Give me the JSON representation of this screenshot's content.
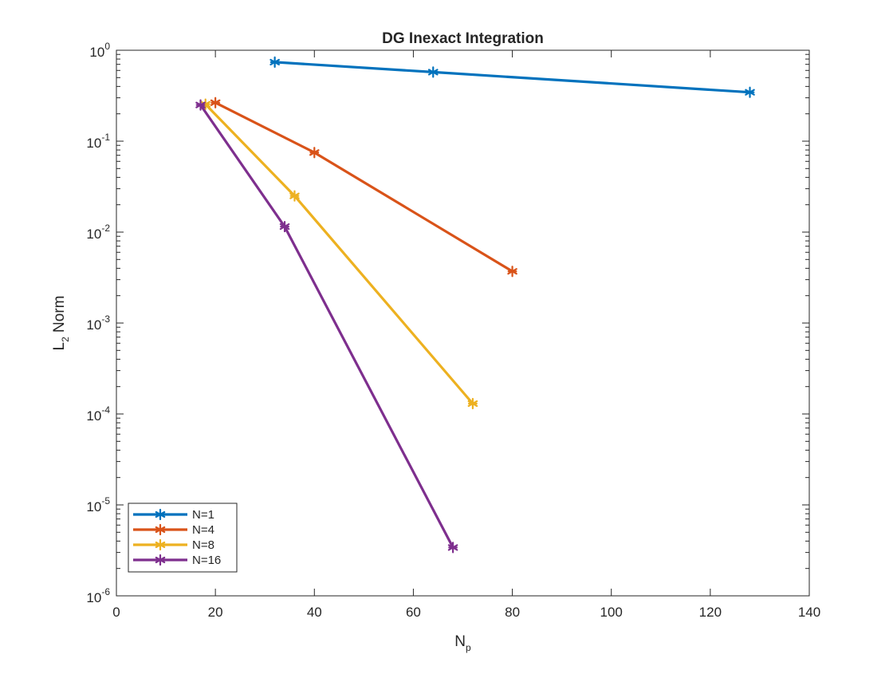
{
  "chart_data": {
    "type": "line",
    "title": "DG Inexact Integration",
    "xlabel": {
      "main": "N",
      "sub": "p"
    },
    "ylabel": {
      "main": "L",
      "sub": "2",
      "rest": " Norm"
    },
    "yscale": "log",
    "xlim": [
      0,
      140
    ],
    "ylim": [
      1e-06,
      1
    ],
    "xticks": [
      {
        "value": 0,
        "label": "0"
      },
      {
        "value": 20,
        "label": "20"
      },
      {
        "value": 40,
        "label": "40"
      },
      {
        "value": 60,
        "label": "60"
      },
      {
        "value": 80,
        "label": "80"
      },
      {
        "value": 100,
        "label": "100"
      },
      {
        "value": 120,
        "label": "120"
      },
      {
        "value": 140,
        "label": "140"
      }
    ],
    "yticks": [
      {
        "value": 1,
        "base": "10",
        "exp": "0"
      },
      {
        "value": 0.1,
        "base": "10",
        "exp": "-1"
      },
      {
        "value": 0.01,
        "base": "10",
        "exp": "-2"
      },
      {
        "value": 0.001,
        "base": "10",
        "exp": "-3"
      },
      {
        "value": 0.0001,
        "base": "10",
        "exp": "-4"
      },
      {
        "value": 1e-05,
        "base": "10",
        "exp": "-5"
      },
      {
        "value": 1e-06,
        "base": "10",
        "exp": "-6"
      }
    ],
    "grid": false,
    "legend_position": "bottom-left",
    "marker": "asterisk",
    "series": [
      {
        "name": "N=1",
        "color": "#0072BD",
        "x": [
          32,
          64,
          128
        ],
        "y": [
          0.74,
          0.575,
          0.345
        ]
      },
      {
        "name": "N=4",
        "color": "#D95319",
        "x": [
          20,
          40,
          80
        ],
        "y": [
          0.265,
          0.075,
          0.0037
        ]
      },
      {
        "name": "N=8",
        "color": "#EDB120",
        "x": [
          18,
          36,
          72
        ],
        "y": [
          0.255,
          0.025,
          0.00013
        ]
      },
      {
        "name": "N=16",
        "color": "#7E2F8E",
        "x": [
          17,
          34,
          68
        ],
        "y": [
          0.25,
          0.0115,
          3.4e-06
        ]
      }
    ]
  }
}
